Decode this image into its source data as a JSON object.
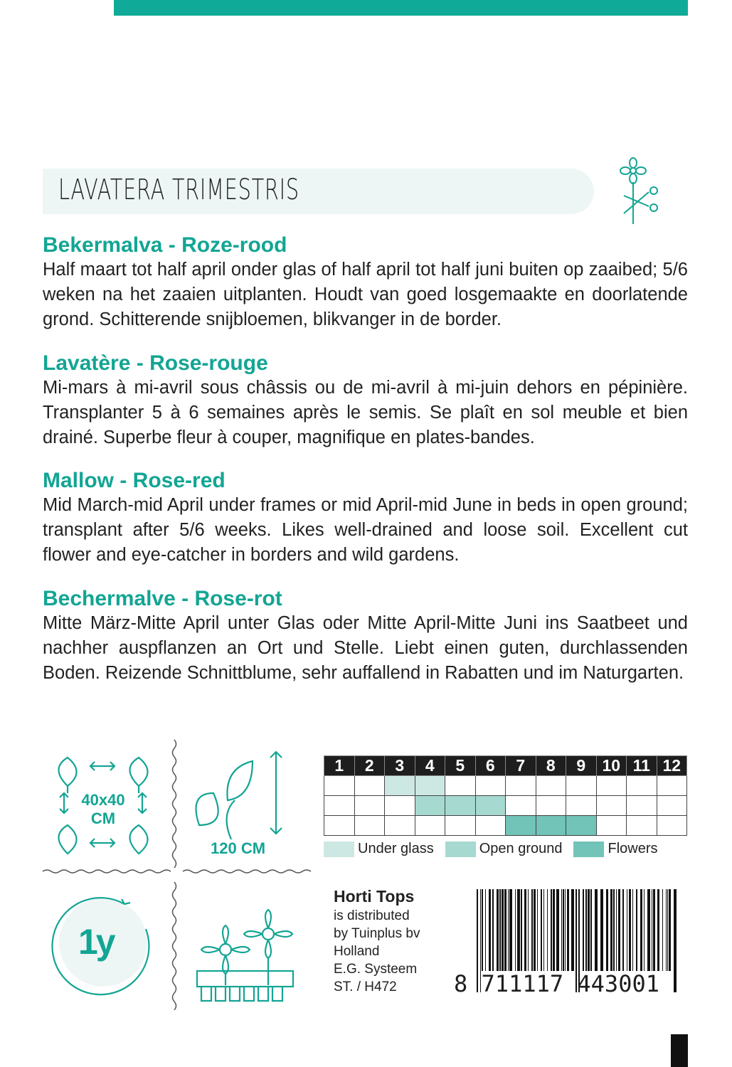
{
  "title": "LAVATERA TRIMESTRIS",
  "accent": "#13a594",
  "sections": [
    {
      "heading": "Bekermalva - Roze-rood",
      "text": "Half maart tot half april onder glas of half april tot half juni buiten op zaaibed; 5/6 weken na het zaaien uitplanten. Houdt van goed losgemaakte en doorlatende grond. Schitterende snijbloemen, blikvanger in de border."
    },
    {
      "heading": "Lavatère - Rose-rouge",
      "text": "Mi-mars à mi-avril sous châssis ou de mi-avril à mi-juin dehors en pépinière. Transplanter 5 à 6 semaines après le semis. Se plaît en sol meuble et bien drainé. Superbe fleur à couper, magnifique en plates-bandes."
    },
    {
      "heading": "Mallow - Rose-red",
      "text": "Mid March-mid April under frames or mid April-mid June in beds in open ground; transplant after 5/6 weeks. Likes well-drained and loose soil. Excellent cut flower and eye-catcher in borders and wild gardens."
    },
    {
      "heading": "Bechermalve - Rose-rot",
      "text": "Mitte März-Mitte April unter Glas oder Mitte April-Mitte Juni ins Saatbeet und nachher auspflanzen an Ort und Stelle. Liebt einen guten, durchlassenden Boden. Reizende Schnittblume, sehr auffallend in Rabatten und im Naturgarten."
    }
  ],
  "icons": {
    "spacing_line1": "40x40",
    "spacing_line2": "CM",
    "height": "120 CM",
    "lifecycle": "1y"
  },
  "calendar": {
    "months": [
      "1",
      "2",
      "3",
      "4",
      "5",
      "6",
      "7",
      "8",
      "9",
      "10",
      "11",
      "12"
    ],
    "rows": [
      {
        "name": "Under glass",
        "color": "#cde8e3",
        "months": [
          3,
          4
        ]
      },
      {
        "name": "Open ground",
        "color": "#a6d9d0",
        "months": [
          4,
          5,
          6
        ]
      },
      {
        "name": "Flowers",
        "color": "#72c3b8",
        "months": [
          7,
          8,
          9
        ]
      }
    ]
  },
  "distributor": {
    "name": "Horti Tops",
    "lines": [
      "is distributed",
      "by Tuinplus bv",
      "Holland",
      "E.G. Systeem",
      "ST. / H472"
    ]
  },
  "barcode": "8 711117 443001"
}
